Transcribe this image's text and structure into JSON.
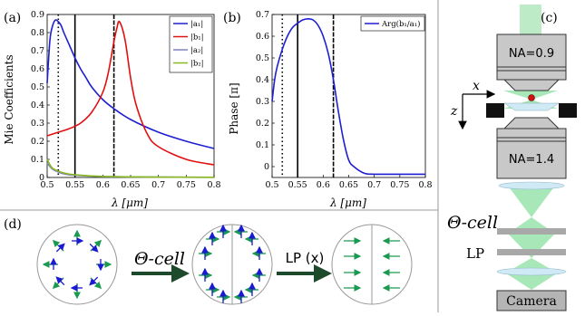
{
  "panels": {
    "a": {
      "label": "(a)",
      "ylabel": "Mie Coefficients",
      "xlabel": "λ [μm]",
      "xticks": [
        "0.5",
        "0.55",
        "0.6",
        "0.65",
        "0.7",
        "0.75",
        "0.8"
      ],
      "yticks": [
        "0",
        "0.1",
        "0.2",
        "0.3",
        "0.4",
        "0.5",
        "0.6",
        "0.7",
        "0.8",
        "0.9"
      ],
      "legend": [
        "|a₁|",
        "|b₁|",
        "|a₂|",
        "|b₂|"
      ]
    },
    "b": {
      "label": "(b)",
      "ylabel": "Phase [π]",
      "xlabel": "λ [μm]",
      "xticks": [
        "0.5",
        "0.55",
        "0.6",
        "0.65",
        "0.7",
        "0.75",
        "0.8"
      ],
      "yticks": [
        "0",
        "0.1",
        "0.2",
        "0.3",
        "0.4",
        "0.5",
        "0.6",
        "0.7"
      ],
      "legend": [
        "Arg(b₁/a₁)"
      ]
    },
    "c": {
      "label": "(c)",
      "na_top": "NA=0.9",
      "na_bottom": "NA=1.4",
      "axis_x": "x",
      "axis_z": "z",
      "theta_cell": "Θ-cell",
      "lp": "LP",
      "camera": "Camera"
    },
    "d": {
      "label": "(d)",
      "step1": "Θ-cell",
      "step2": "LP (x)"
    }
  },
  "colors": {
    "a1": "#1f1fd1",
    "b1": "#e01010",
    "a2": "#8080c0",
    "b2": "#8ab820",
    "arrow_green": "#1a9a50",
    "arrow_blue": "#1a1ad0",
    "beam": "#a8e8b8"
  },
  "chart_data": [
    {
      "type": "line",
      "ylabel": "Mie Coefficients",
      "xlabel": "λ [μm]",
      "xlim": [
        0.5,
        0.8
      ],
      "ylim": [
        0,
        0.9
      ],
      "vlines": [
        {
          "x": 0.52,
          "style": "dotted"
        },
        {
          "x": 0.55,
          "style": "solid"
        },
        {
          "x": 0.62,
          "style": "dashed"
        }
      ],
      "legend_position": "top-right",
      "series": [
        {
          "name": "|a₁|",
          "color": "#1f1fd1",
          "x": [
            0.5,
            0.505,
            0.51,
            0.515,
            0.52,
            0.525,
            0.53,
            0.54,
            0.55,
            0.56,
            0.57,
            0.58,
            0.6,
            0.62,
            0.65,
            0.7,
            0.75,
            0.8
          ],
          "y": [
            0.52,
            0.76,
            0.84,
            0.87,
            0.86,
            0.84,
            0.8,
            0.73,
            0.66,
            0.6,
            0.55,
            0.5,
            0.43,
            0.38,
            0.32,
            0.25,
            0.2,
            0.16
          ]
        },
        {
          "name": "|b₁|",
          "color": "#e01010",
          "x": [
            0.5,
            0.52,
            0.54,
            0.56,
            0.58,
            0.6,
            0.61,
            0.62,
            0.625,
            0.63,
            0.64,
            0.65,
            0.66,
            0.68,
            0.7,
            0.75,
            0.8
          ],
          "y": [
            0.23,
            0.25,
            0.27,
            0.3,
            0.36,
            0.47,
            0.58,
            0.75,
            0.82,
            0.86,
            0.76,
            0.55,
            0.4,
            0.24,
            0.17,
            0.1,
            0.07
          ]
        },
        {
          "name": "|a₂|",
          "color": "#8080c0",
          "x": [
            0.5,
            0.505,
            0.51,
            0.52,
            0.53,
            0.55,
            0.6,
            0.7,
            0.8
          ],
          "y": [
            0.08,
            0.06,
            0.045,
            0.03,
            0.02,
            0.012,
            0.005,
            0.002,
            0.001
          ]
        },
        {
          "name": "|b₂|",
          "color": "#8ab820",
          "x": [
            0.5,
            0.505,
            0.51,
            0.52,
            0.53,
            0.55,
            0.6,
            0.7,
            0.8
          ],
          "y": [
            0.1,
            0.07,
            0.05,
            0.035,
            0.025,
            0.015,
            0.006,
            0.002,
            0.001
          ]
        }
      ]
    },
    {
      "type": "line",
      "ylabel": "Phase [π]",
      "xlabel": "λ [μm]",
      "xlim": [
        0.5,
        0.8
      ],
      "ylim": [
        -0.05,
        0.7
      ],
      "vlines": [
        {
          "x": 0.52,
          "style": "dotted"
        },
        {
          "x": 0.55,
          "style": "solid"
        },
        {
          "x": 0.62,
          "style": "dashed"
        }
      ],
      "legend_position": "top-right",
      "series": [
        {
          "name": "Arg(b₁/a₁)",
          "color": "#1f1fd1",
          "x": [
            0.5,
            0.505,
            0.51,
            0.52,
            0.53,
            0.54,
            0.55,
            0.56,
            0.57,
            0.58,
            0.59,
            0.6,
            0.61,
            0.62,
            0.63,
            0.64,
            0.65,
            0.66,
            0.68,
            0.7,
            0.75,
            0.8
          ],
          "y": [
            0.3,
            0.4,
            0.46,
            0.54,
            0.6,
            0.64,
            0.66,
            0.675,
            0.68,
            0.675,
            0.65,
            0.6,
            0.52,
            0.4,
            0.25,
            0.12,
            0.03,
            0.0,
            -0.03,
            -0.035,
            -0.035,
            -0.035
          ]
        }
      ]
    }
  ]
}
